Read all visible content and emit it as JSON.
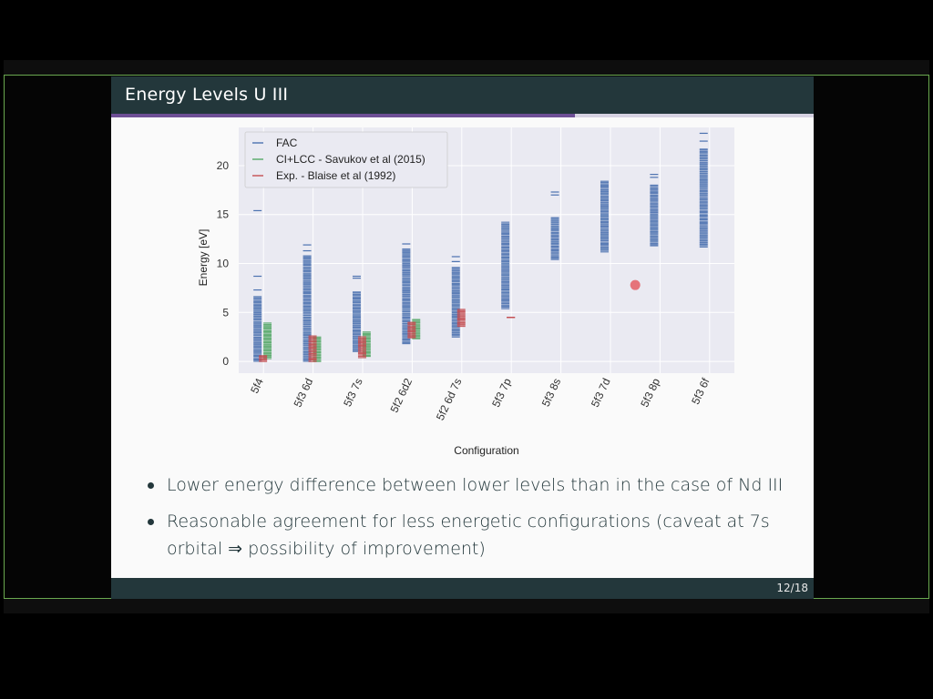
{
  "slide": {
    "title": "Energy Levels U III",
    "page_number": "12/18",
    "progress": 0.66
  },
  "bullets": [
    "Lower energy difference between lower levels than in the case of Nd III",
    "Reasonable agreement for less energetic configurations (caveat at 7s orbital ⇒ possibility of improvement)"
  ],
  "colors": {
    "fac": "#4c72b0",
    "ci_lcc": "#55a868",
    "exp": "#c44e52",
    "header": "#23373b",
    "progress": "#6e4f96"
  },
  "chart_data": {
    "type": "scatter",
    "title": "",
    "xlabel": "Configuration",
    "ylabel": "Energy [eV]",
    "ylim": [
      -1.2,
      23.9
    ],
    "yticks": [
      0,
      5,
      10,
      15,
      20
    ],
    "grid": true,
    "legend_position": "top-left",
    "categories": [
      "5f4",
      "5f3 6d",
      "5f3 7s",
      "5f2 6d2",
      "5f2 6d 7s",
      "5f3 7p",
      "5f3 8s",
      "5f3 7d",
      "5f3 8p",
      "5f3 6f"
    ],
    "series": [
      {
        "name": "FAC",
        "color": "#4c72b0",
        "ranges": [
          {
            "category": "5f4",
            "min": 0.0,
            "max": 6.6,
            "outliers": [
              7.3,
              8.7,
              15.4
            ]
          },
          {
            "category": "5f3 6d",
            "min": 0.0,
            "max": 10.8,
            "outliers": [
              11.3,
              11.9
            ]
          },
          {
            "category": "5f3 7s",
            "min": 1.0,
            "max": 7.1,
            "outliers": [
              8.5,
              8.7
            ]
          },
          {
            "category": "5f2 6d2",
            "min": 1.8,
            "max": 11.5,
            "outliers": [
              12.0
            ]
          },
          {
            "category": "5f2 6d 7s",
            "min": 2.5,
            "max": 9.6,
            "outliers": [
              10.2,
              10.7
            ]
          },
          {
            "category": "5f3 7p",
            "min": 5.4,
            "max": 14.2,
            "outliers": []
          },
          {
            "category": "5f3 8s",
            "min": 10.4,
            "max": 14.7,
            "outliers": [
              17.0,
              17.3
            ]
          },
          {
            "category": "5f3 7d",
            "min": 11.2,
            "max": 18.4,
            "outliers": []
          },
          {
            "category": "5f3 8p",
            "min": 11.8,
            "max": 18.0,
            "outliers": [
              18.8,
              19.1
            ]
          },
          {
            "category": "5f3 6f",
            "min": 11.7,
            "max": 21.7,
            "outliers": [
              22.5,
              23.3
            ]
          }
        ]
      },
      {
        "name": "CI+LCC - Savukov et al (2015)",
        "color": "#55a868",
        "ranges": [
          {
            "category": "5f4",
            "min": 0.3,
            "max": 3.9,
            "outliers": []
          },
          {
            "category": "5f3 6d",
            "min": 0.0,
            "max": 2.5,
            "outliers": []
          },
          {
            "category": "5f3 7s",
            "min": 0.5,
            "max": 3.0,
            "outliers": []
          },
          {
            "category": "5f2 6d2",
            "min": 2.3,
            "max": 4.3,
            "outliers": []
          }
        ]
      },
      {
        "name": "Exp. - Blaise et al (1992)",
        "color": "#c44e52",
        "ranges": [
          {
            "category": "5f4",
            "min": 0.0,
            "max": 0.6,
            "outliers": []
          },
          {
            "category": "5f3 6d",
            "min": 0.0,
            "max": 2.6,
            "outliers": []
          },
          {
            "category": "5f3 7s",
            "min": 0.4,
            "max": 2.5,
            "outliers": []
          },
          {
            "category": "5f2 6d2",
            "min": 2.4,
            "max": 4.0,
            "outliers": []
          },
          {
            "category": "5f2 6d 7s",
            "min": 3.6,
            "max": 5.3,
            "outliers": []
          },
          {
            "category": "5f3 7p",
            "min": 4.5,
            "max": 4.5,
            "outliers": []
          }
        ]
      }
    ],
    "annotations": [
      {
        "type": "dot",
        "x": "5f3 7d",
        "x_offset": 0.5,
        "y": 7.8,
        "color": "#e5737a"
      }
    ]
  }
}
